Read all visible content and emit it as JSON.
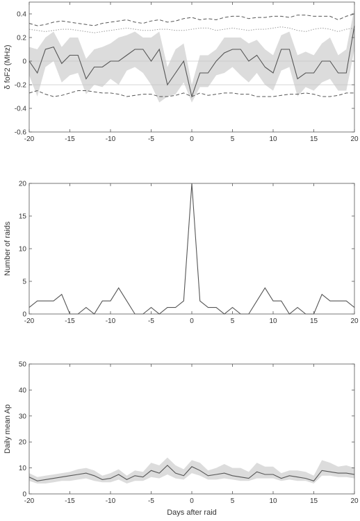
{
  "chart_data": [
    {
      "type": "line",
      "ylabel": "δ foF2 (MHz)",
      "xlabel": "",
      "xlim": [
        -20,
        20
      ],
      "ylim": [
        -0.6,
        0.5
      ],
      "xticks": [
        -20,
        -15,
        -10,
        -5,
        0,
        5,
        10,
        15,
        20
      ],
      "yticks": [
        -0.6,
        -0.4,
        -0.2,
        0,
        0.2,
        0.4
      ],
      "x": [
        -20,
        -19,
        -18,
        -17,
        -16,
        -15,
        -14,
        -13,
        -12,
        -11,
        -10,
        -9,
        -8,
        -7,
        -6,
        -5,
        -4,
        -3,
        -2,
        -1,
        0,
        1,
        2,
        3,
        4,
        5,
        6,
        7,
        8,
        9,
        10,
        11,
        12,
        13,
        14,
        15,
        16,
        17,
        18,
        19,
        20
      ],
      "series": [
        {
          "style": "solid",
          "color": "#555555",
          "values": [
            0.0,
            -0.1,
            0.1,
            0.12,
            -0.02,
            0.05,
            0.05,
            -0.15,
            -0.05,
            -0.05,
            0.0,
            0.0,
            0.05,
            0.1,
            0.1,
            0.0,
            0.1,
            -0.2,
            -0.1,
            0.0,
            -0.3,
            -0.1,
            -0.1,
            0.0,
            0.07,
            0.1,
            0.1,
            0.0,
            0.05,
            -0.05,
            -0.1,
            0.1,
            0.1,
            -0.15,
            -0.1,
            -0.1,
            0.0,
            0.0,
            -0.1,
            -0.1,
            0.3
          ]
        },
        {
          "style": "dashed",
          "color": "#555555",
          "values": [
            0.32,
            0.3,
            0.31,
            0.33,
            0.34,
            0.33,
            0.32,
            0.31,
            0.3,
            0.32,
            0.33,
            0.34,
            0.35,
            0.33,
            0.32,
            0.34,
            0.35,
            0.33,
            0.34,
            0.36,
            0.37,
            0.35,
            0.36,
            0.35,
            0.37,
            0.38,
            0.38,
            0.36,
            0.37,
            0.37,
            0.38,
            0.38,
            0.37,
            0.39,
            0.39,
            0.38,
            0.38,
            0.38,
            0.35,
            0.38,
            0.4
          ]
        },
        {
          "style": "dashed",
          "color": "#555555",
          "values": [
            -0.27,
            -0.25,
            -0.28,
            -0.3,
            -0.29,
            -0.27,
            -0.25,
            -0.25,
            -0.26,
            -0.27,
            -0.27,
            -0.28,
            -0.3,
            -0.29,
            -0.28,
            -0.28,
            -0.3,
            -0.3,
            -0.29,
            -0.27,
            -0.3,
            -0.27,
            -0.29,
            -0.28,
            -0.27,
            -0.27,
            -0.28,
            -0.28,
            -0.3,
            -0.3,
            -0.3,
            -0.29,
            -0.28,
            -0.28,
            -0.27,
            -0.28,
            -0.3,
            -0.3,
            -0.29,
            -0.27,
            -0.27
          ]
        },
        {
          "style": "dotted",
          "color": "#999999",
          "values": [
            0.27,
            0.26,
            0.25,
            0.26,
            0.27,
            0.27,
            0.26,
            0.25,
            0.24,
            0.25,
            0.26,
            0.27,
            0.28,
            0.27,
            0.26,
            0.26,
            0.27,
            0.27,
            0.26,
            0.26,
            0.27,
            0.28,
            0.28,
            0.26,
            0.27,
            0.28,
            0.27,
            0.26,
            0.27,
            0.27,
            0.28,
            0.29,
            0.28,
            0.26,
            0.25,
            0.27,
            0.28,
            0.27,
            0.25,
            0.27,
            0.28
          ]
        }
      ],
      "band": {
        "lower": [
          -0.12,
          -0.3,
          -0.05,
          0.0,
          -0.18,
          -0.12,
          -0.1,
          -0.28,
          -0.2,
          -0.22,
          -0.15,
          -0.2,
          -0.08,
          -0.05,
          -0.1,
          -0.2,
          -0.35,
          -0.3,
          -0.28,
          -0.18,
          -0.35,
          -0.22,
          -0.22,
          -0.12,
          -0.1,
          -0.05,
          -0.12,
          -0.18,
          -0.1,
          -0.2,
          -0.25,
          -0.08,
          -0.05,
          -0.3,
          -0.22,
          -0.25,
          -0.18,
          -0.15,
          -0.25,
          -0.25,
          0.1
        ],
        "upper": [
          0.12,
          0.1,
          0.2,
          0.25,
          0.12,
          0.2,
          0.2,
          0.02,
          0.1,
          0.12,
          0.15,
          0.2,
          0.22,
          0.25,
          0.2,
          0.2,
          0.25,
          -0.05,
          0.1,
          0.15,
          -0.2,
          0.05,
          0.05,
          0.1,
          0.2,
          0.2,
          0.2,
          0.15,
          0.18,
          0.1,
          0.05,
          0.22,
          0.25,
          0.05,
          0.08,
          0.05,
          0.15,
          0.2,
          0.05,
          0.1,
          0.45
        ]
      },
      "hlines": [
        0,
        -0.2
      ]
    },
    {
      "type": "line",
      "ylabel": "Number of raids",
      "xlabel": "",
      "xlim": [
        -20,
        20
      ],
      "ylim": [
        0,
        20
      ],
      "xticks": [
        -20,
        -15,
        -10,
        -5,
        0,
        5,
        10,
        15,
        20
      ],
      "yticks": [
        0,
        5,
        10,
        15,
        20
      ],
      "x": [
        -20,
        -19,
        -18,
        -17,
        -16,
        -15,
        -14,
        -13,
        -12,
        -11,
        -10,
        -9,
        -8,
        -7,
        -6,
        -5,
        -4,
        -3,
        -2,
        -1,
        0,
        1,
        2,
        3,
        4,
        5,
        6,
        7,
        8,
        9,
        10,
        11,
        12,
        13,
        14,
        15,
        16,
        17,
        18,
        19,
        20
      ],
      "series": [
        {
          "style": "solid",
          "color": "#555555",
          "values": [
            1,
            2,
            2,
            2,
            3,
            0,
            0,
            1,
            0,
            2,
            2,
            4,
            2,
            0,
            0,
            1,
            0,
            1,
            1,
            2,
            20,
            2,
            1,
            1,
            0,
            1,
            0,
            0,
            2,
            4,
            2,
            2,
            0,
            1,
            0,
            0,
            3,
            2,
            2,
            2,
            1
          ]
        }
      ]
    },
    {
      "type": "line",
      "ylabel": "Daily mean Ap",
      "xlabel": "Days after raid",
      "xlim": [
        -20,
        20
      ],
      "ylim": [
        0,
        50
      ],
      "xticks": [
        -20,
        -15,
        -10,
        -5,
        0,
        5,
        10,
        15,
        20
      ],
      "yticks": [
        0,
        10,
        20,
        30,
        40,
        50
      ],
      "x": [
        -20,
        -19,
        -18,
        -17,
        -16,
        -15,
        -14,
        -13,
        -12,
        -11,
        -10,
        -9,
        -8,
        -7,
        -6,
        -5,
        -4,
        -3,
        -2,
        -1,
        0,
        1,
        2,
        3,
        4,
        5,
        6,
        7,
        8,
        9,
        10,
        11,
        12,
        13,
        14,
        15,
        16,
        17,
        18,
        19,
        20
      ],
      "series": [
        {
          "style": "solid",
          "color": "#555555",
          "values": [
            6.5,
            5,
            5.5,
            6,
            6.5,
            7,
            7.5,
            8,
            7,
            5.5,
            6,
            7.5,
            5.5,
            7,
            6.5,
            9,
            8,
            11,
            8,
            7,
            10.5,
            9,
            7,
            7.5,
            8,
            7,
            6.5,
            6,
            8.5,
            7.5,
            7.5,
            6,
            7,
            6.5,
            6,
            5,
            9,
            8.5,
            8,
            8,
            7.5
          ]
        }
      ],
      "band": {
        "lower": [
          5,
          4,
          4,
          4.5,
          5,
          5,
          5.5,
          6,
          5,
          4.5,
          4.5,
          5.5,
          4,
          5,
          5,
          6.5,
          6,
          7.5,
          6,
          5.5,
          8,
          7,
          5.5,
          5.5,
          6,
          5.5,
          5,
          5,
          6,
          6,
          6,
          5,
          5.5,
          5,
          5,
          4,
          7,
          7,
          6.5,
          6.5,
          6
        ],
        "upper": [
          8,
          6.5,
          7,
          7.5,
          8,
          8.5,
          9.5,
          10,
          9,
          7,
          8,
          9.5,
          7,
          9,
          8.5,
          12,
          11,
          14,
          11,
          9.5,
          13,
          12,
          9,
          10,
          11.5,
          10,
          10,
          8.5,
          12,
          10.5,
          10.5,
          8,
          9,
          9,
          8.5,
          7,
          13,
          12,
          10.5,
          11,
          10
        ]
      }
    }
  ]
}
